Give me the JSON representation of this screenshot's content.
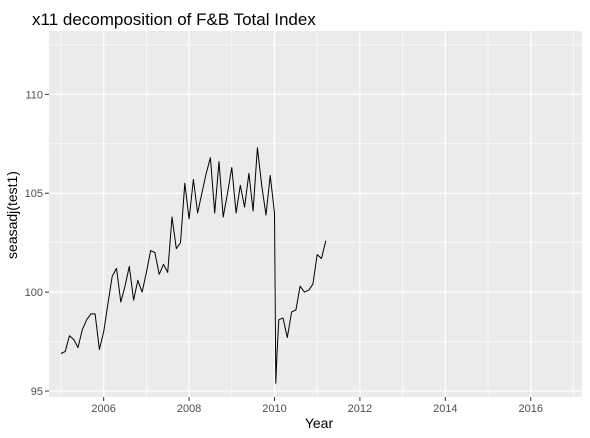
{
  "chart_data": {
    "type": "line",
    "title": "x11 decomposition of F&B Total Index",
    "xlabel": "Year",
    "ylabel": "seasadj(test1)",
    "xlim": [
      2004.72,
      2017.2
    ],
    "ylim": [
      94.7,
      113.2
    ],
    "xticks": [
      2006,
      2008,
      2010,
      2012,
      2014,
      2016
    ],
    "yticks": [
      95,
      100,
      105,
      110
    ],
    "grid": true,
    "panel_background": "#ebebeb",
    "grid_color": "#ffffff",
    "line_color": "#000000",
    "series": [
      {
        "values": [
          [
            2005.0,
            96.9
          ],
          [
            2005.1,
            97.0
          ],
          [
            2005.2,
            97.8
          ],
          [
            2005.3,
            97.6
          ],
          [
            2005.4,
            97.2
          ],
          [
            2005.5,
            98.1
          ],
          [
            2005.6,
            98.6
          ],
          [
            2005.7,
            98.9
          ],
          [
            2005.8,
            98.9
          ],
          [
            2005.9,
            97.1
          ],
          [
            2006.0,
            98.0
          ],
          [
            2006.1,
            99.4
          ],
          [
            2006.2,
            100.8
          ],
          [
            2006.3,
            101.2
          ],
          [
            2006.4,
            99.5
          ],
          [
            2006.5,
            100.3
          ],
          [
            2006.6,
            101.3
          ],
          [
            2006.7,
            99.6
          ],
          [
            2006.8,
            100.6
          ],
          [
            2006.9,
            100.0
          ],
          [
            2007.0,
            101.0
          ],
          [
            2007.1,
            102.1
          ],
          [
            2007.2,
            102.0
          ],
          [
            2007.3,
            100.9
          ],
          [
            2007.4,
            101.4
          ],
          [
            2007.5,
            101.0
          ],
          [
            2007.6,
            103.8
          ],
          [
            2007.7,
            102.2
          ],
          [
            2007.8,
            102.5
          ],
          [
            2007.9,
            105.5
          ],
          [
            2008.0,
            103.7
          ],
          [
            2008.1,
            105.7
          ],
          [
            2008.2,
            104.0
          ],
          [
            2008.3,
            105.0
          ],
          [
            2008.4,
            106.0
          ],
          [
            2008.5,
            106.8
          ],
          [
            2008.6,
            104.0
          ],
          [
            2008.7,
            106.6
          ],
          [
            2008.8,
            103.8
          ],
          [
            2008.9,
            105.0
          ],
          [
            2009.0,
            106.3
          ],
          [
            2009.1,
            104.0
          ],
          [
            2009.2,
            105.4
          ],
          [
            2009.3,
            104.3
          ],
          [
            2009.4,
            106.0
          ],
          [
            2009.5,
            104.1
          ],
          [
            2009.6,
            107.3
          ],
          [
            2009.7,
            105.4
          ],
          [
            2009.8,
            103.9
          ],
          [
            2009.9,
            105.9
          ],
          [
            2010.0,
            104.0
          ],
          [
            2010.03,
            95.4
          ],
          [
            2010.06,
            97.0
          ],
          [
            2010.1,
            98.6
          ],
          [
            2010.2,
            98.7
          ],
          [
            2010.3,
            97.7
          ],
          [
            2010.4,
            99.0
          ],
          [
            2010.5,
            99.1
          ],
          [
            2010.6,
            100.3
          ],
          [
            2010.7,
            100.0
          ],
          [
            2010.8,
            100.1
          ],
          [
            2010.9,
            100.4
          ],
          [
            2011.0,
            101.9
          ],
          [
            2011.1,
            101.7
          ],
          [
            2011.2,
            102.6
          ]
        ]
      }
    ]
  }
}
